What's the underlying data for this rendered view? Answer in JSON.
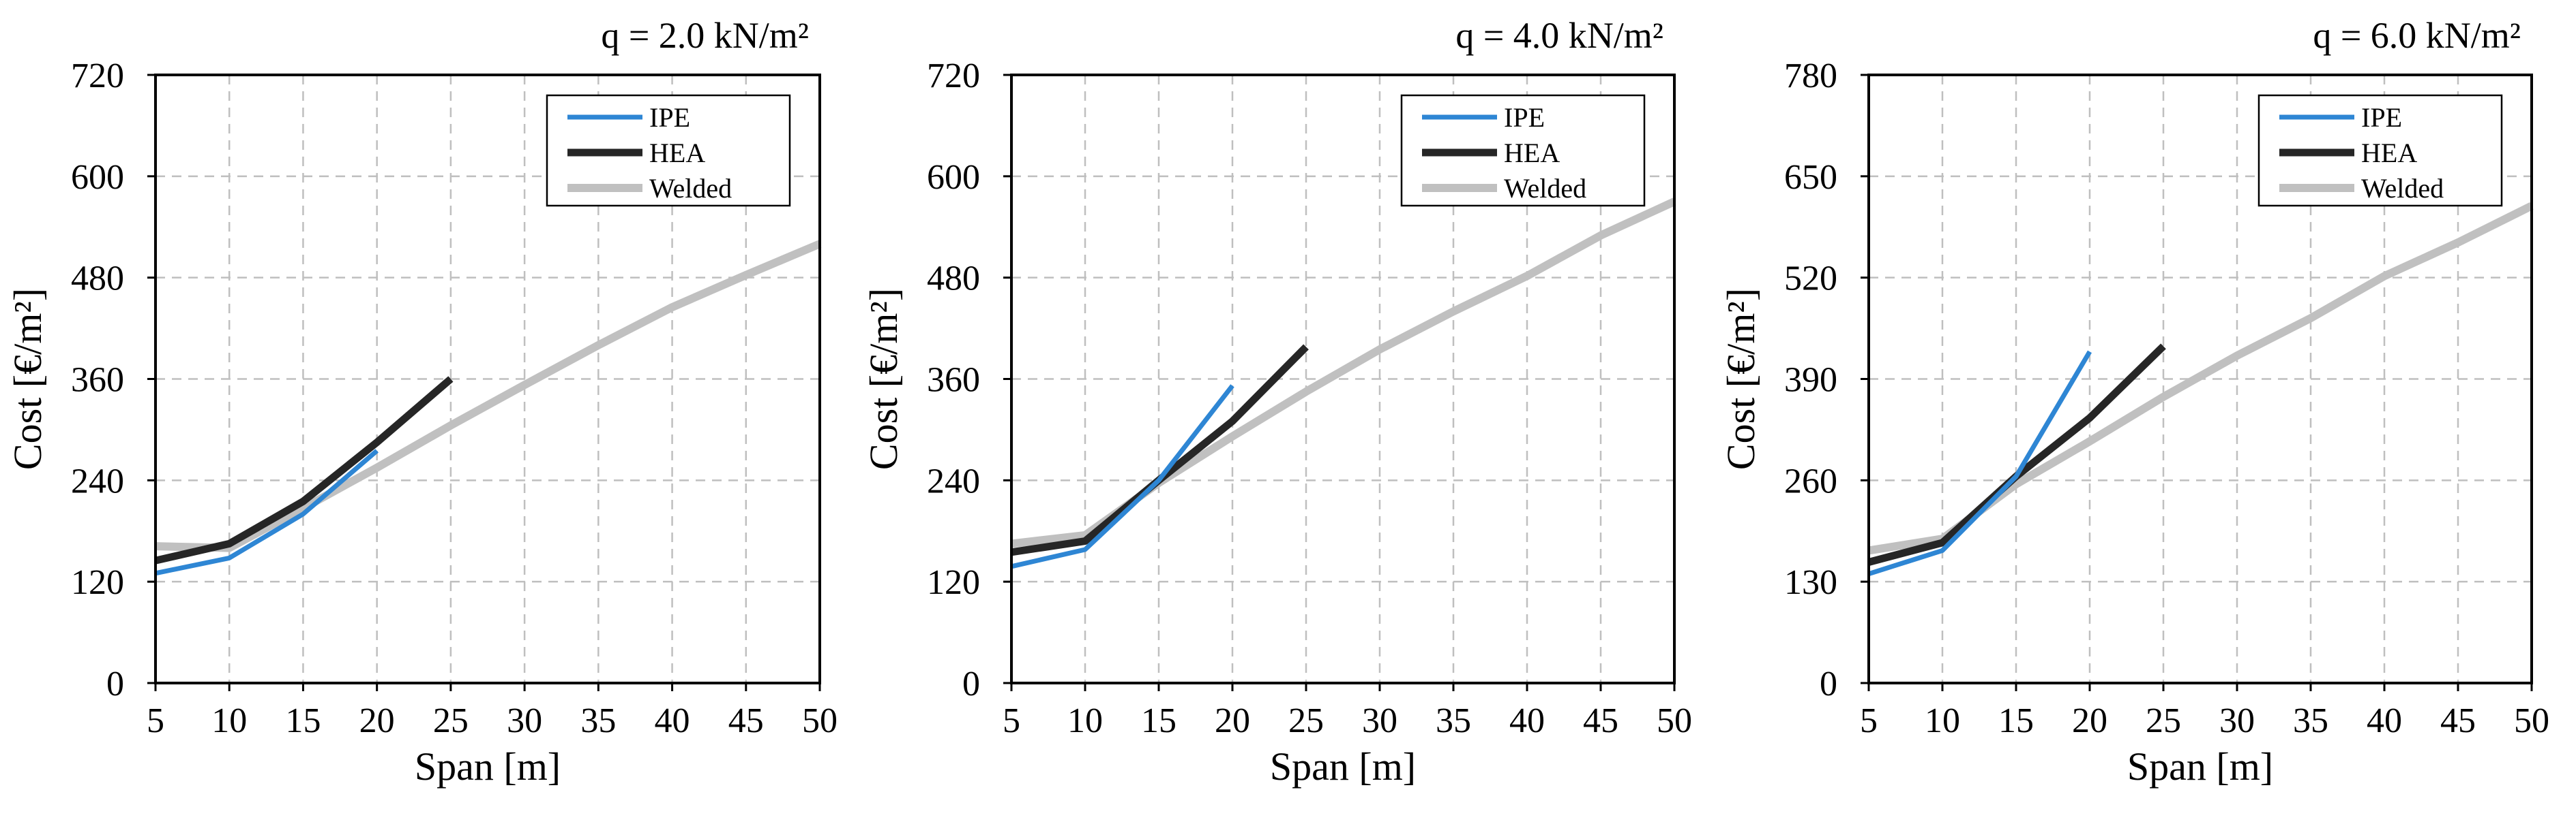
{
  "chart_data": [
    {
      "type": "line",
      "title": "q = 2.0 kN/m²",
      "xlabel": "Span [m]",
      "ylabel": "Cost [€/m²]",
      "xlim": [
        5,
        50
      ],
      "ylim": [
        0,
        720
      ],
      "xticks": [
        5,
        10,
        15,
        20,
        25,
        30,
        35,
        40,
        45,
        50
      ],
      "yticks": [
        0,
        120,
        240,
        360,
        480,
        600,
        720
      ],
      "grid": true,
      "legend_position": "top-right",
      "series": [
        {
          "name": "IPE",
          "color": "#2e86d4",
          "x": [
            5,
            10,
            15,
            20
          ],
          "y": [
            130,
            148,
            200,
            275
          ]
        },
        {
          "name": "HEA",
          "color": "#262626",
          "x": [
            5,
            10,
            15,
            20,
            25
          ],
          "y": [
            145,
            165,
            215,
            285,
            360
          ]
        },
        {
          "name": "Welded",
          "color": "#c0c0c0",
          "x": [
            5,
            10,
            15,
            20,
            25,
            30,
            35,
            40,
            45,
            50
          ],
          "y": [
            162,
            160,
            207,
            255,
            305,
            353,
            400,
            445,
            483,
            520
          ]
        }
      ]
    },
    {
      "type": "line",
      "title": "q = 4.0 kN/m²",
      "xlabel": "Span [m]",
      "ylabel": "Cost [€/m²]",
      "xlim": [
        5,
        50
      ],
      "ylim": [
        0,
        720
      ],
      "xticks": [
        5,
        10,
        15,
        20,
        25,
        30,
        35,
        40,
        45,
        50
      ],
      "yticks": [
        0,
        120,
        240,
        360,
        480,
        600,
        720
      ],
      "grid": true,
      "legend_position": "top-right",
      "series": [
        {
          "name": "IPE",
          "color": "#2e86d4",
          "x": [
            5,
            10,
            15,
            20
          ],
          "y": [
            138,
            158,
            240,
            352
          ]
        },
        {
          "name": "HEA",
          "color": "#262626",
          "x": [
            5,
            10,
            15,
            20,
            25
          ],
          "y": [
            155,
            168,
            240,
            310,
            398
          ]
        },
        {
          "name": "Welded",
          "color": "#c0c0c0",
          "x": [
            5,
            10,
            15,
            20,
            25,
            30,
            35,
            40,
            45,
            50
          ],
          "y": [
            165,
            175,
            237,
            292,
            345,
            395,
            440,
            482,
            530,
            570
          ]
        }
      ]
    },
    {
      "type": "line",
      "title": "q = 6.0 kN/m²",
      "xlabel": "Span [m]",
      "ylabel": "Cost [€/m²]",
      "xlim": [
        5,
        50
      ],
      "ylim": [
        0,
        780
      ],
      "xticks": [
        5,
        10,
        15,
        20,
        25,
        30,
        35,
        40,
        45,
        50
      ],
      "yticks": [
        0,
        130,
        260,
        390,
        520,
        650,
        780
      ],
      "grid": true,
      "legend_position": "top-right",
      "series": [
        {
          "name": "IPE",
          "color": "#2e86d4",
          "x": [
            5,
            10,
            15,
            20
          ],
          "y": [
            140,
            170,
            265,
            425
          ]
        },
        {
          "name": "HEA",
          "color": "#262626",
          "x": [
            5,
            10,
            15,
            20,
            25
          ],
          "y": [
            155,
            180,
            265,
            340,
            432
          ]
        },
        {
          "name": "Welded",
          "color": "#c0c0c0",
          "x": [
            5,
            10,
            15,
            20,
            25,
            30,
            35,
            40,
            45,
            50
          ],
          "y": [
            170,
            185,
            255,
            310,
            367,
            420,
            468,
            522,
            565,
            612
          ]
        }
      ]
    }
  ]
}
